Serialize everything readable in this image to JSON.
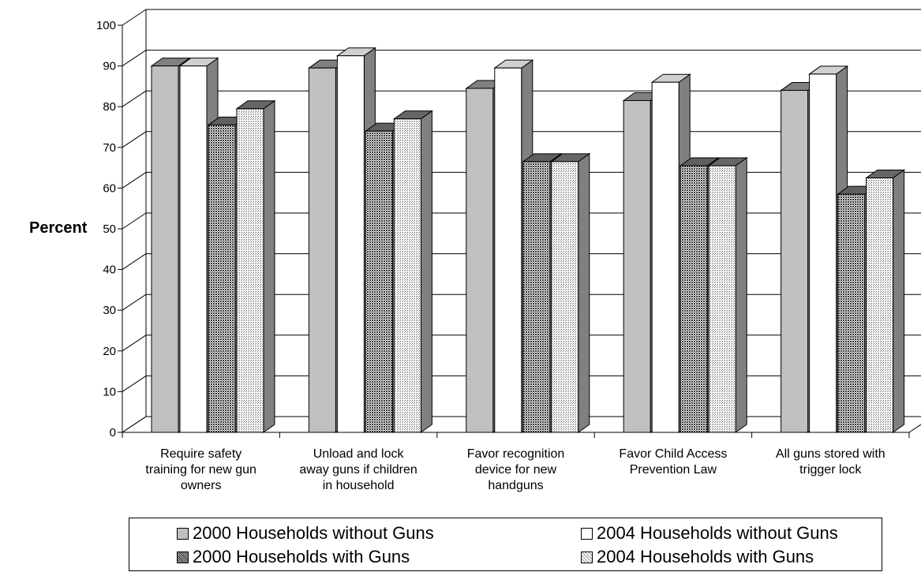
{
  "chart_data": {
    "type": "bar",
    "ylabel": "Percent",
    "xlabel": "",
    "ylim": [
      0,
      100
    ],
    "yticks": [
      "0",
      "10",
      "20",
      "30",
      "40",
      "50",
      "60",
      "70",
      "80",
      "90",
      "100"
    ],
    "grid": "horizontal",
    "legend_position": "bottom",
    "categories": [
      [
        "Require safety",
        "training for new gun",
        "owners"
      ],
      [
        "Unload and lock",
        "away guns if children",
        "in household"
      ],
      [
        "Favor recognition",
        "device for new",
        "handguns"
      ],
      [
        "Favor Child Access",
        "Prevention Law"
      ],
      [
        "All guns stored with",
        "trigger lock"
      ]
    ],
    "series": [
      {
        "name": "2000 Households without Guns",
        "values": [
          90,
          89.5,
          84.5,
          81.5,
          84
        ],
        "color": "#c0c0c0",
        "pattern": "solid"
      },
      {
        "name": "2004 Households without Guns",
        "values": [
          90,
          92.5,
          89.5,
          86,
          88
        ],
        "color": "#ffffff",
        "pattern": "solid"
      },
      {
        "name": "2000 Households with Guns",
        "values": [
          75.5,
          74,
          66.5,
          65.5,
          58.5
        ],
        "color": "#808080",
        "pattern": "dense-dots"
      },
      {
        "name": "2004 Households with Guns",
        "values": [
          79.5,
          77,
          66.5,
          65.5,
          62.5
        ],
        "color": "#c8c8c8",
        "pattern": "light-dots"
      }
    ]
  }
}
